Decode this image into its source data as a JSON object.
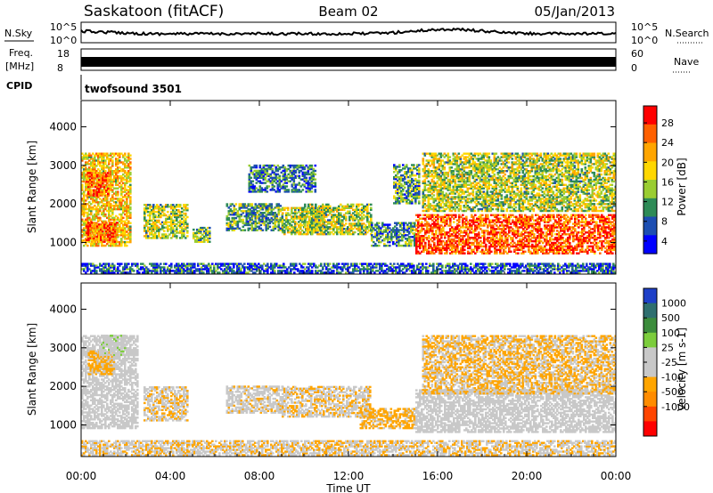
{
  "header": {
    "station": "Saskatoon (fitACF)",
    "beam": "Beam 02",
    "date": "05/Jan/2013"
  },
  "noise_panel": {
    "left_label": "N.Sky",
    "right_label": "N.Search",
    "left_ticks": [
      "10^5",
      "10^0"
    ],
    "right_ticks": [
      "10^5",
      "10^0"
    ]
  },
  "freq_panel": {
    "left_label_1": "Freq.",
    "left_label_2": "[MHz]",
    "right_label": "Nave",
    "left_ticks": [
      "18",
      "8"
    ],
    "right_ticks": [
      "60",
      "0"
    ]
  },
  "cpid": {
    "label": "CPID",
    "value": "twofsound 3501"
  },
  "time_axis": {
    "label": "Time UT",
    "ticks": [
      "00:00",
      "04:00",
      "08:00",
      "12:00",
      "16:00",
      "20:00",
      "00:00"
    ],
    "range_hours": [
      0,
      24
    ]
  },
  "chart_data": [
    {
      "type": "heatmap",
      "quantity": "Power",
      "ylabel": "Slant Range [km]",
      "yticks": [
        "1000",
        "2000",
        "3000",
        "4000"
      ],
      "ylim": [
        180,
        4680
      ],
      "colorbar_label": "Power [dB]",
      "colorbar_ticks": [
        "4",
        "8",
        "12",
        "16",
        "20",
        "24",
        "28"
      ],
      "colorbar_range": [
        0,
        30
      ],
      "colorscale": [
        "#0000ff",
        "#1d4eb2",
        "#2e8b57",
        "#9acd32",
        "#ffd700",
        "#ffa500",
        "#ff6000",
        "#ff0000"
      ],
      "regions": [
        {
          "t": [
            0.0,
            2.2
          ],
          "r": [
            900,
            3300
          ],
          "v": 18
        },
        {
          "t": [
            0.2,
            1.6
          ],
          "r": [
            1000,
            1500
          ],
          "v": 24
        },
        {
          "t": [
            0.2,
            1.2
          ],
          "r": [
            2200,
            2800
          ],
          "v": 24
        },
        {
          "t": [
            2.8,
            4.8
          ],
          "r": [
            1100,
            2000
          ],
          "v": 14
        },
        {
          "t": [
            5.0,
            5.8
          ],
          "r": [
            1000,
            1400
          ],
          "v": 12
        },
        {
          "t": [
            6.5,
            9.0
          ],
          "r": [
            1300,
            2000
          ],
          "v": 10
        },
        {
          "t": [
            7.5,
            10.5
          ],
          "r": [
            2300,
            3000
          ],
          "v": 8
        },
        {
          "t": [
            9.0,
            11.0
          ],
          "r": [
            1200,
            1900
          ],
          "v": 14
        },
        {
          "t": [
            10.0,
            13.0
          ],
          "r": [
            1200,
            2000
          ],
          "v": 14
        },
        {
          "t": [
            13.0,
            15.0
          ],
          "r": [
            900,
            1500
          ],
          "v": 9
        },
        {
          "t": [
            14.0,
            15.2
          ],
          "r": [
            2000,
            3000
          ],
          "v": 10
        },
        {
          "t": [
            15.0,
            24.0
          ],
          "r": [
            700,
            1700
          ],
          "v": 25
        },
        {
          "t": [
            15.3,
            24.0
          ],
          "r": [
            1800,
            3300
          ],
          "v": 14
        },
        {
          "t": [
            0.0,
            24.0
          ],
          "r": [
            200,
            450
          ],
          "v": 6
        }
      ]
    },
    {
      "type": "heatmap",
      "quantity": "Velocity",
      "ylabel": "Slant Range [km]",
      "yticks": [
        "1000",
        "2000",
        "3000",
        "4000"
      ],
      "ylim": [
        180,
        4680
      ],
      "colorbar_label": "Velocity [m s-1]",
      "colorbar_ticks": [
        "1000",
        "500",
        "100",
        "25",
        "-25",
        "-100",
        "-500",
        "-1000"
      ],
      "colorbar_range": [
        -1200,
        1200
      ],
      "colorscale": [
        "#ff0000",
        "#ff4500",
        "#ff8c00",
        "#ffa500",
        "#c8c8c8",
        "#c8c8c8",
        "#7ccd3c",
        "#3c8c3c",
        "#2f6f6f",
        "#1e40c8"
      ],
      "regions": [
        {
          "t": [
            0.0,
            2.5
          ],
          "r": [
            900,
            3300
          ],
          "v": -10
        },
        {
          "t": [
            0.3,
            1.5
          ],
          "r": [
            2300,
            2900
          ],
          "v": -300
        },
        {
          "t": [
            0.8,
            2.0
          ],
          "r": [
            2800,
            3300
          ],
          "v": 150
        },
        {
          "t": [
            2.8,
            4.8
          ],
          "r": [
            1100,
            2000
          ],
          "v": -200
        },
        {
          "t": [
            6.5,
            9.0
          ],
          "r": [
            1300,
            2000
          ],
          "v": -150
        },
        {
          "t": [
            9.0,
            13.0
          ],
          "r": [
            1200,
            2000
          ],
          "v": -200
        },
        {
          "t": [
            12.5,
            15.0
          ],
          "r": [
            900,
            1400
          ],
          "v": -300
        },
        {
          "t": [
            15.0,
            24.0
          ],
          "r": [
            800,
            1900
          ],
          "v": 0
        },
        {
          "t": [
            15.3,
            24.0
          ],
          "r": [
            1800,
            3300
          ],
          "v": -250
        },
        {
          "t": [
            0.0,
            24.0
          ],
          "r": [
            200,
            600
          ],
          "v": -200
        }
      ]
    }
  ]
}
